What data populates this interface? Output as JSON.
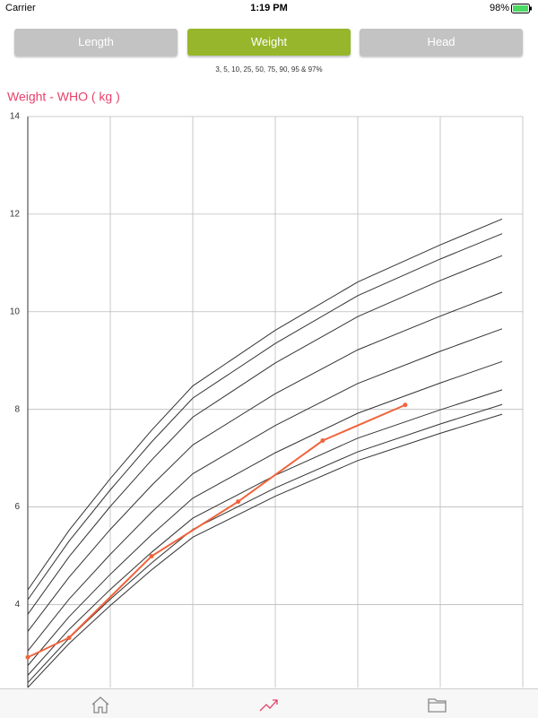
{
  "status_bar": {
    "carrier": "Carrier",
    "time": "1:19 PM",
    "battery": "98%"
  },
  "tabs": [
    {
      "label": "Length",
      "active": false
    },
    {
      "label": "Weight",
      "active": true
    },
    {
      "label": "Head",
      "active": false
    }
  ],
  "subtitle": "3, 5, 10, 25, 50, 75, 90, 95 & 97%",
  "chart_data": {
    "type": "line",
    "title": "Weight - WHO ( kg )",
    "x": [
      0,
      1,
      2,
      3,
      4,
      6,
      8,
      10,
      11.5
    ],
    "xlim": [
      0,
      12
    ],
    "xgrid": [
      0,
      2,
      4,
      6,
      8,
      10,
      12
    ],
    "ylim": [
      2.3,
      14
    ],
    "yticks": [
      4,
      6,
      8,
      10,
      12,
      14
    ],
    "grid": true,
    "series": [
      {
        "color": "#333333",
        "values": [
          4.3,
          5.52,
          6.58,
          7.57,
          8.48,
          9.62,
          10.61,
          11.37,
          11.9
        ]
      },
      {
        "color": "#333333",
        "values": [
          4.1,
          5.3,
          6.35,
          7.33,
          8.23,
          9.35,
          10.33,
          11.08,
          11.6
        ]
      },
      {
        "color": "#333333",
        "values": [
          3.8,
          4.98,
          6.01,
          6.96,
          7.84,
          8.95,
          9.9,
          10.64,
          11.15
        ]
      },
      {
        "color": "#333333",
        "values": [
          3.45,
          4.56,
          5.54,
          6.44,
          7.27,
          8.32,
          9.22,
          9.91,
          10.4
        ]
      },
      {
        "color": "#333333",
        "values": [
          3.05,
          4.11,
          5.03,
          5.89,
          6.68,
          7.67,
          8.53,
          9.19,
          9.65
        ]
      },
      {
        "color": "#333333",
        "values": [
          2.75,
          3.75,
          4.62,
          5.43,
          6.18,
          7.11,
          7.92,
          8.54,
          8.98
        ]
      },
      {
        "color": "#333333",
        "values": [
          2.55,
          3.49,
          4.31,
          5.07,
          5.77,
          6.65,
          7.41,
          7.99,
          8.4
        ]
      },
      {
        "color": "#333333",
        "values": [
          2.4,
          3.31,
          4.11,
          4.85,
          5.54,
          6.39,
          7.13,
          7.7,
          8.1
        ]
      },
      {
        "color": "#333333",
        "values": [
          2.3,
          3.2,
          3.98,
          4.71,
          5.38,
          6.22,
          6.95,
          7.51,
          7.9
        ]
      },
      {
        "color": "#f0643c",
        "markers": true,
        "x": [
          0,
          1,
          3,
          5.1,
          7.15,
          9.15
        ],
        "values": [
          2.92,
          3.32,
          4.99,
          6.11,
          7.36,
          8.09
        ]
      }
    ]
  }
}
